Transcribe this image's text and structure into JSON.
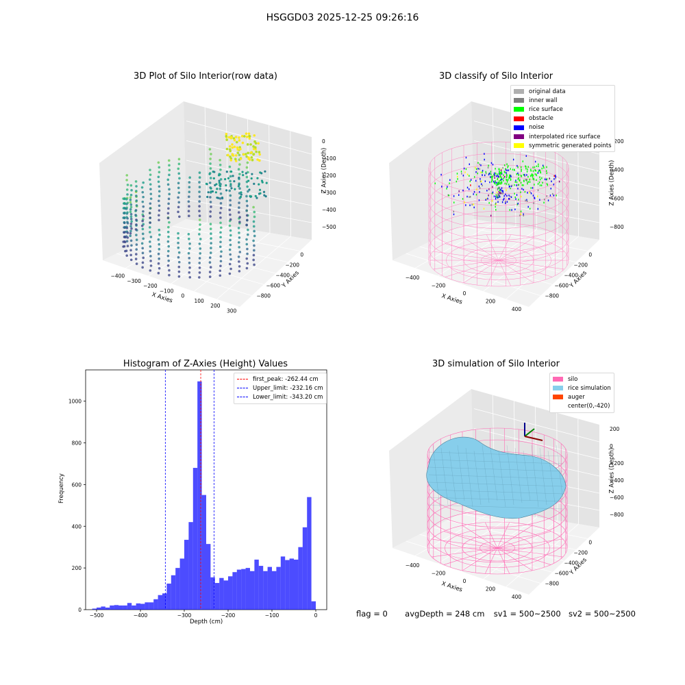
{
  "main_title": "HSGGD03 2025-12-25 09:26:16",
  "panels": {
    "raw": {
      "title": "3D Plot of Silo Interior(row data)",
      "xlabel": "X Axies",
      "ylabel": "Y Axies",
      "zlabel": "Z Axies (Depth)",
      "xticks": [
        "−400",
        "−300",
        "−200",
        "−100",
        "0",
        "100",
        "200",
        "300"
      ],
      "yticks": [
        "0",
        "−200",
        "−400",
        "−600",
        "−800"
      ],
      "zticks": [
        "0",
        "−100",
        "−200",
        "−300",
        "−400",
        "−500"
      ]
    },
    "classify": {
      "title": "3D classify of Silo Interior",
      "xlabel": "X Axies",
      "ylabel": "Y Axies",
      "zlabel": "Z Axies (Depth)",
      "xticks": [
        "−400",
        "−200",
        "0",
        "200",
        "400"
      ],
      "yticks": [
        "0",
        "−200",
        "−400",
        "−600",
        "−800"
      ],
      "zticks": [
        "−200",
        "−400",
        "−600",
        "−800"
      ],
      "legend": [
        {
          "label": "original data",
          "color": "#b0b0b0"
        },
        {
          "label": "inner wall",
          "color": "#808080"
        },
        {
          "label": "rice surface",
          "color": "#00ff00"
        },
        {
          "label": "obstacle",
          "color": "#ff0000"
        },
        {
          "label": "noise",
          "color": "#0000ff"
        },
        {
          "label": "interpolated rice surface",
          "color": "#800080"
        },
        {
          "label": "symmetric generated points",
          "color": "#ffff00"
        }
      ]
    },
    "simulation": {
      "title": "3D simulation of Silo Interior",
      "xlabel": "X Axies",
      "ylabel": "Y Axies",
      "zlabel": "Z Axies (Depth)",
      "xticks": [
        "−400",
        "−200",
        "0",
        "200",
        "400"
      ],
      "yticks": [
        "0",
        "−200",
        "−400",
        "−600",
        "−800"
      ],
      "zticks": [
        "200",
        "0",
        "−200",
        "−400",
        "−600",
        "−800"
      ],
      "legend": [
        {
          "label": "silo",
          "color": "#ff69b4"
        },
        {
          "label": "rice simulation",
          "color": "#87ceeb"
        },
        {
          "label": "auger",
          "color": "#ff4500"
        },
        {
          "label": "center(0,-420)",
          "color": ""
        }
      ]
    }
  },
  "chart_data": {
    "type": "bar",
    "title": "Histogram of Z-Axies (Height) Values",
    "xlabel": "Depth (cm)",
    "ylabel": "Frequency",
    "xlim": [
      -525,
      25
    ],
    "ylim": [
      0,
      1150
    ],
    "xticks": [
      -500,
      -400,
      -300,
      -200,
      -100,
      0
    ],
    "yticks": [
      0,
      200,
      400,
      600,
      800,
      1000
    ],
    "bin_width": 10,
    "bin_starts": [
      -510,
      -500,
      -490,
      -480,
      -470,
      -460,
      -450,
      -440,
      -430,
      -420,
      -410,
      -400,
      -390,
      -380,
      -370,
      -360,
      -350,
      -340,
      -330,
      -320,
      -310,
      -300,
      -290,
      -280,
      -270,
      -260,
      -250,
      -240,
      -230,
      -220,
      -210,
      -200,
      -190,
      -180,
      -170,
      -160,
      -150,
      -140,
      -130,
      -120,
      -110,
      -100,
      -90,
      -80,
      -70,
      -60,
      -50,
      -40,
      -30,
      -20,
      -10
    ],
    "values": [
      5,
      10,
      15,
      10,
      20,
      22,
      20,
      20,
      32,
      20,
      30,
      28,
      35,
      35,
      50,
      70,
      78,
      125,
      165,
      200,
      245,
      335,
      420,
      680,
      1095,
      550,
      315,
      155,
      128,
      152,
      140,
      160,
      180,
      192,
      195,
      200,
      185,
      240,
      210,
      185,
      205,
      185,
      205,
      255,
      238,
      245,
      240,
      300,
      395,
      540,
      40
    ],
    "color": "#0000ff",
    "lines": [
      {
        "label": "first_peak: -262.44 cm",
        "x": -262.44,
        "color": "#ff0000"
      },
      {
        "label": "Upper_limit: -232.16 cm",
        "x": -232.16,
        "color": "#0000ff"
      },
      {
        "label": "Lower_limit: -343.20 cm",
        "x": -343.2,
        "color": "#0000ff"
      }
    ],
    "legend_position": "top-right",
    "grid": false
  },
  "status": {
    "flag": "flag = 0",
    "avg_depth": "avgDepth = 248 cm",
    "sv1": "sv1 = 500~2500",
    "sv2": "sv2 = 500~2500"
  }
}
